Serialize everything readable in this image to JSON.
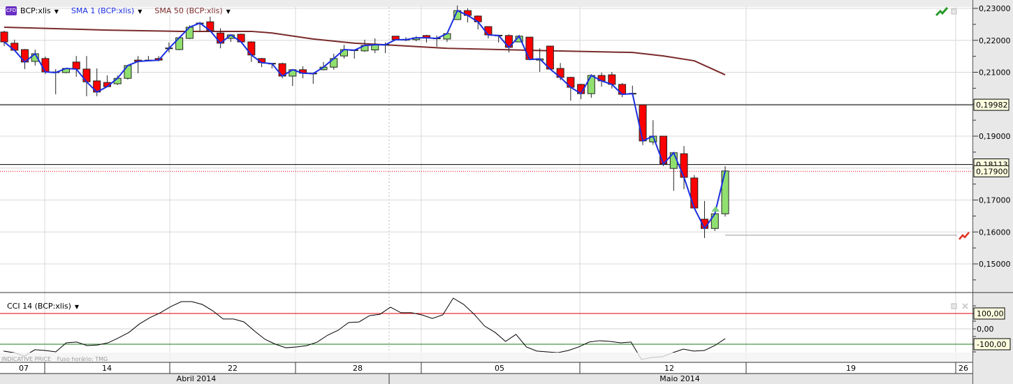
{
  "legend": {
    "symbol_badge": "CFD",
    "symbol": "BCP:xlis",
    "sma1": "SMA 1 (BCP:xlis)",
    "sma50": "SMA 50 (BCP:xlis)",
    "cci": "CCI 14 (BCP:xlis)"
  },
  "footer": {
    "indicative": "INDICATIVE PRICE",
    "timezone": "Fuso horário: TMG"
  },
  "colors": {
    "up": "#90e070",
    "down": "#ff0000",
    "sma1": "#1a2ee0",
    "sma50": "#7a2a2a",
    "cci": "#000000",
    "cci_upper": "#e00000",
    "cci_lower": "#1a7a1a",
    "axis_bg": "#e8e8e8"
  },
  "chart_data": [
    {
      "type": "candlestick",
      "title": "BCP:xlis",
      "y_axis": {
        "range": [
          0.142,
          0.232
        ],
        "ticks": [
          "0,23000",
          "0,22000",
          "0,21000",
          "0,19000",
          "0,17000",
          "0,16000",
          "0,15000"
        ],
        "tick_values": [
          0.23,
          0.22,
          0.21,
          0.19,
          0.17,
          0.16,
          0.15
        ]
      },
      "x_axis": {
        "day_labels": [
          "07",
          "14",
          "22",
          "28",
          "05",
          "12",
          "19",
          "26"
        ],
        "month_labels": [
          "Abril 2014",
          "Maio 2014"
        ]
      },
      "candles_ohlc": [
        [
          0.2226,
          0.223,
          0.2182,
          0.2195
        ],
        [
          0.2191,
          0.2202,
          0.2169,
          0.2169
        ],
        [
          0.2171,
          0.2173,
          0.211,
          0.2132
        ],
        [
          0.2134,
          0.2171,
          0.2121,
          0.2158
        ],
        [
          0.2143,
          0.2149,
          0.2095,
          0.2101
        ],
        [
          0.2101,
          0.211,
          0.2031,
          0.2099
        ],
        [
          0.2099,
          0.2112,
          0.2097,
          0.2112
        ],
        [
          0.2132,
          0.2151,
          0.2086,
          0.211
        ],
        [
          0.211,
          0.2151,
          0.2025,
          0.207
        ],
        [
          0.2073,
          0.2112,
          0.2025,
          0.2038
        ],
        [
          0.2068,
          0.209,
          0.2055,
          0.2055
        ],
        [
          0.2064,
          0.209,
          0.206,
          0.2081
        ],
        [
          0.2081,
          0.2123,
          0.2077,
          0.2121
        ],
        [
          0.2138,
          0.2151,
          0.2097,
          0.2134
        ],
        [
          0.2138,
          0.2151,
          0.2136,
          0.2136
        ],
        [
          0.2143,
          0.2151,
          0.2134,
          0.2138
        ],
        [
          0.2176,
          0.2193,
          0.2162,
          0.2175
        ],
        [
          0.2171,
          0.2212,
          0.2169,
          0.2208
        ],
        [
          0.2206,
          0.2247,
          0.2204,
          0.2241
        ],
        [
          0.2252,
          0.2258,
          0.2228,
          0.2254
        ],
        [
          0.2258,
          0.2274,
          0.2228,
          0.223
        ],
        [
          0.2223,
          0.2238,
          0.2175,
          0.2191
        ],
        [
          0.2206,
          0.2219,
          0.2195,
          0.2217
        ],
        [
          0.2219,
          0.2221,
          0.2195,
          0.2195
        ],
        [
          0.2195,
          0.2197,
          0.2132,
          0.2154
        ],
        [
          0.2143,
          0.2145,
          0.2116,
          0.213
        ],
        [
          0.2128,
          0.2128,
          0.2112,
          0.2127
        ],
        [
          0.2127,
          0.213,
          0.2081,
          0.2088
        ],
        [
          0.2088,
          0.211,
          0.2057,
          0.2108
        ],
        [
          0.2108,
          0.2119,
          0.2081,
          0.2097
        ],
        [
          0.2097,
          0.2097,
          0.2064,
          0.2096
        ],
        [
          0.2108,
          0.2132,
          0.2106,
          0.2116
        ],
        [
          0.2116,
          0.2158,
          0.2108,
          0.2143
        ],
        [
          0.2151,
          0.2186,
          0.2143,
          0.2171
        ],
        [
          0.217,
          0.2171,
          0.2143,
          0.2169
        ],
        [
          0.2167,
          0.2202,
          0.2164,
          0.2184
        ],
        [
          0.217,
          0.2206,
          0.216,
          0.2186
        ],
        [
          0.2187,
          0.2193,
          0.216,
          0.2186
        ],
        [
          0.2213,
          0.2213,
          0.2202,
          0.2202
        ],
        [
          0.2203,
          0.221,
          0.2197,
          0.2202
        ],
        [
          0.2202,
          0.2213,
          0.2197,
          0.2208
        ],
        [
          0.2215,
          0.2217,
          0.2193,
          0.2208
        ],
        [
          0.2207,
          0.2215,
          0.218,
          0.2206
        ],
        [
          0.2204,
          0.2223,
          0.2195,
          0.2221
        ],
        [
          0.2265,
          0.2309,
          0.2265,
          0.2293
        ],
        [
          0.2293,
          0.23,
          0.2256,
          0.2278
        ],
        [
          0.2276,
          0.2278,
          0.2234,
          0.2258
        ],
        [
          0.2243,
          0.2243,
          0.2206,
          0.2217
        ],
        [
          0.2216,
          0.2217,
          0.2193,
          0.2215
        ],
        [
          0.2215,
          0.2219,
          0.2162,
          0.2178
        ],
        [
          0.2195,
          0.2217,
          0.2195,
          0.2213
        ],
        [
          0.221,
          0.221,
          0.214,
          0.214
        ],
        [
          0.2138,
          0.2175,
          0.2101,
          0.2142
        ],
        [
          0.2182,
          0.2182,
          0.211,
          0.211
        ],
        [
          0.2112,
          0.2129,
          0.2075,
          0.2084
        ],
        [
          0.2084,
          0.2086,
          0.2011,
          0.2053
        ],
        [
          0.2062,
          0.2064,
          0.2016,
          0.2033
        ],
        [
          0.2033,
          0.2094,
          0.202,
          0.209
        ],
        [
          0.209,
          0.2099,
          0.2055,
          0.2073
        ],
        [
          0.2092,
          0.2101,
          0.2049,
          0.2062
        ],
        [
          0.2062,
          0.2066,
          0.2022,
          0.2031
        ],
        [
          0.2034,
          0.2058,
          0.2031,
          0.2033
        ],
        [
          0.1998,
          0.1998,
          0.1872,
          0.1885
        ],
        [
          0.1882,
          0.195,
          0.1873,
          0.19
        ],
        [
          0.19,
          0.19,
          0.1806,
          0.1813
        ],
        [
          0.1799,
          0.1848,
          0.1729,
          0.1848
        ],
        [
          0.1845,
          0.1869,
          0.1734,
          0.1771
        ],
        [
          0.1769,
          0.1778,
          0.1675,
          0.1675
        ],
        [
          0.164,
          0.1697,
          0.1581,
          0.1611
        ],
        [
          0.1611,
          0.1657,
          0.1603,
          0.1657
        ],
        [
          0.1657,
          0.1806,
          0.1648,
          0.1791
        ]
      ],
      "sma50_points": [
        [
          0,
          0.2241
        ],
        [
          10,
          0.2232
        ],
        [
          17,
          0.2228
        ],
        [
          24,
          0.2228
        ],
        [
          26,
          0.2223
        ],
        [
          30,
          0.2204
        ],
        [
          34,
          0.2191
        ],
        [
          37,
          0.2186
        ],
        [
          43,
          0.2175
        ],
        [
          52,
          0.2168
        ],
        [
          61,
          0.2162
        ],
        [
          64,
          0.2151
        ],
        [
          67,
          0.2136
        ],
        [
          70,
          0.2092
        ]
      ],
      "reference_lines": [
        {
          "label": "0,19982",
          "value": 0.19982,
          "style": "solid"
        },
        {
          "label": "0,18113",
          "value": 0.18113,
          "style": "solid"
        },
        {
          "label": "0,17900",
          "value": 0.179,
          "style": "dotted-current-price"
        }
      ],
      "alert_line_value": 0.159,
      "signal_marker_candle": 69
    },
    {
      "type": "line",
      "title": "CCI 14 (BCP:xlis)",
      "y_axis": {
        "range": [
          -210,
          230
        ],
        "ticks": [
          "100,00",
          "0,00",
          "-100,00"
        ],
        "tick_values": [
          100,
          0,
          -100
        ]
      },
      "values": [
        -145,
        -155,
        -177,
        -136,
        -141,
        -150,
        -91,
        -86,
        -109,
        -105,
        -91,
        -59,
        -23,
        32,
        73,
        105,
        145,
        177,
        177,
        159,
        118,
        64,
        64,
        45,
        -14,
        -68,
        -100,
        -123,
        -118,
        -109,
        -86,
        -41,
        -9,
        41,
        45,
        86,
        95,
        141,
        105,
        105,
        91,
        68,
        91,
        200,
        159,
        95,
        18,
        -23,
        -82,
        -36,
        -118,
        -145,
        -150,
        -155,
        -141,
        -118,
        -86,
        -77,
        -82,
        -91,
        -86,
        -200,
        -186,
        -182,
        -155,
        -132,
        -145,
        -141,
        -109,
        -64
      ]
    }
  ]
}
